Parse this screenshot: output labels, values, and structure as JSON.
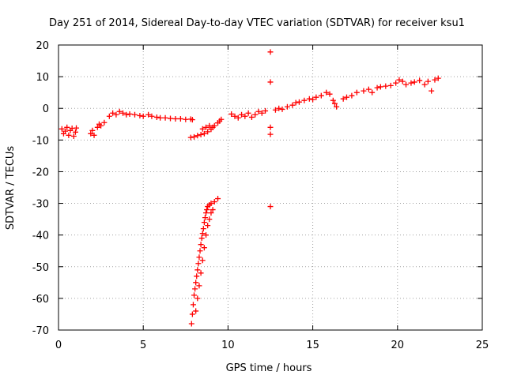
{
  "chart_data": {
    "type": "scatter",
    "title": "Day 251 of 2014, Sidereal Day-to-day VTEC variation (SDTVAR) for receiver ksu1",
    "xlabel": "GPS time / hours",
    "ylabel": "SDTVAR / TECUs",
    "xlim": [
      0,
      25
    ],
    "ylim": [
      -70,
      20
    ],
    "xticks": [
      0,
      5,
      10,
      15,
      20,
      25
    ],
    "yticks": [
      -70,
      -60,
      -50,
      -40,
      -30,
      -20,
      -10,
      0,
      10,
      20
    ],
    "grid": true,
    "marker": "+",
    "color": "#ff0000",
    "series": [
      {
        "name": "SDTVAR",
        "points": [
          [
            0.2,
            -6.5
          ],
          [
            0.3,
            -8.0
          ],
          [
            0.4,
            -7.2
          ],
          [
            0.5,
            -6.0
          ],
          [
            0.6,
            -8.5
          ],
          [
            0.7,
            -7.0
          ],
          [
            0.8,
            -6.3
          ],
          [
            0.9,
            -8.8
          ],
          [
            1.0,
            -7.5
          ],
          [
            1.05,
            -6.2
          ],
          [
            1.9,
            -8.0
          ],
          [
            2.0,
            -7.0
          ],
          [
            2.1,
            -8.5
          ],
          [
            2.3,
            -6.0
          ],
          [
            2.4,
            -5.0
          ],
          [
            2.5,
            -5.5
          ],
          [
            2.7,
            -4.5
          ],
          [
            3.0,
            -2.5
          ],
          [
            3.2,
            -1.5
          ],
          [
            3.4,
            -2.0
          ],
          [
            3.6,
            -1.0
          ],
          [
            3.8,
            -1.5
          ],
          [
            4.0,
            -2.0
          ],
          [
            4.2,
            -1.8
          ],
          [
            4.5,
            -2.0
          ],
          [
            4.8,
            -2.3
          ],
          [
            5.0,
            -2.5
          ],
          [
            5.3,
            -2.0
          ],
          [
            5.5,
            -2.5
          ],
          [
            5.8,
            -2.8
          ],
          [
            6.0,
            -3.0
          ],
          [
            6.3,
            -3.0
          ],
          [
            6.6,
            -3.2
          ],
          [
            6.9,
            -3.3
          ],
          [
            7.2,
            -3.3
          ],
          [
            7.5,
            -3.5
          ],
          [
            7.8,
            -3.4
          ],
          [
            7.9,
            -3.6
          ],
          [
            7.8,
            -9.2
          ],
          [
            8.0,
            -9.0
          ],
          [
            8.2,
            -8.6
          ],
          [
            8.4,
            -8.3
          ],
          [
            8.6,
            -8.0
          ],
          [
            8.8,
            -7.4
          ],
          [
            9.0,
            -6.6
          ],
          [
            9.1,
            -6.0
          ],
          [
            9.2,
            -5.5
          ],
          [
            9.4,
            -4.6
          ],
          [
            9.5,
            -4.0
          ],
          [
            9.6,
            -3.5
          ],
          [
            8.5,
            -6.5
          ],
          [
            8.7,
            -6.0
          ],
          [
            8.9,
            -5.5
          ],
          [
            7.85,
            -68
          ],
          [
            7.9,
            -65
          ],
          [
            7.95,
            -62
          ],
          [
            8.0,
            -59
          ],
          [
            8.05,
            -57
          ],
          [
            8.1,
            -55
          ],
          [
            8.15,
            -53
          ],
          [
            8.2,
            -51
          ],
          [
            8.25,
            -49
          ],
          [
            8.3,
            -47
          ],
          [
            8.35,
            -45
          ],
          [
            8.4,
            -43
          ],
          [
            8.45,
            -41
          ],
          [
            8.5,
            -39.5
          ],
          [
            8.55,
            -38
          ],
          [
            8.6,
            -36
          ],
          [
            8.65,
            -34.5
          ],
          [
            8.7,
            -33
          ],
          [
            8.75,
            -32
          ],
          [
            8.8,
            -31
          ],
          [
            8.9,
            -30.5
          ],
          [
            9.0,
            -30
          ],
          [
            9.2,
            -29.5
          ],
          [
            9.4,
            -28.5
          ],
          [
            8.1,
            -64
          ],
          [
            8.2,
            -60
          ],
          [
            8.3,
            -56
          ],
          [
            8.4,
            -52
          ],
          [
            8.5,
            -48
          ],
          [
            8.6,
            -44
          ],
          [
            8.7,
            -40
          ],
          [
            8.8,
            -37
          ],
          [
            8.9,
            -35
          ],
          [
            9.0,
            -33
          ],
          [
            9.1,
            -32
          ],
          [
            10.2,
            -1.8
          ],
          [
            10.4,
            -2.5
          ],
          [
            10.6,
            -3.0
          ],
          [
            10.8,
            -2.0
          ],
          [
            11.0,
            -2.5
          ],
          [
            11.2,
            -1.5
          ],
          [
            11.4,
            -2.8
          ],
          [
            11.6,
            -2.0
          ],
          [
            11.8,
            -1.0
          ],
          [
            12.0,
            -1.5
          ],
          [
            12.2,
            -0.8
          ],
          [
            12.5,
            17.8
          ],
          [
            12.5,
            8.3
          ],
          [
            12.5,
            -6.0
          ],
          [
            12.5,
            -8.2
          ],
          [
            12.5,
            -31.0
          ],
          [
            12.8,
            -0.5
          ],
          [
            13.0,
            0.0
          ],
          [
            13.2,
            -0.3
          ],
          [
            13.5,
            0.5
          ],
          [
            13.8,
            1.0
          ],
          [
            14.0,
            1.8
          ],
          [
            14.2,
            2.0
          ],
          [
            14.5,
            2.5
          ],
          [
            14.8,
            3.0
          ],
          [
            15.0,
            2.8
          ],
          [
            15.2,
            3.5
          ],
          [
            15.5,
            4.0
          ],
          [
            15.8,
            5.0
          ],
          [
            16.0,
            4.5
          ],
          [
            16.2,
            2.5
          ],
          [
            16.3,
            1.5
          ],
          [
            16.4,
            0.5
          ],
          [
            16.8,
            3.0
          ],
          [
            17.0,
            3.5
          ],
          [
            17.3,
            4.0
          ],
          [
            17.6,
            5.0
          ],
          [
            18.0,
            5.5
          ],
          [
            18.3,
            6.0
          ],
          [
            18.5,
            5.0
          ],
          [
            18.8,
            6.5
          ],
          [
            19.0,
            6.8
          ],
          [
            19.3,
            7.0
          ],
          [
            19.6,
            7.2
          ],
          [
            19.9,
            8.0
          ],
          [
            20.1,
            9.0
          ],
          [
            20.3,
            8.5
          ],
          [
            20.5,
            7.5
          ],
          [
            20.8,
            8.0
          ],
          [
            21.0,
            8.3
          ],
          [
            21.3,
            8.8
          ],
          [
            21.6,
            7.5
          ],
          [
            21.8,
            8.5
          ],
          [
            22.0,
            5.5
          ],
          [
            22.2,
            9.0
          ],
          [
            22.4,
            9.5
          ]
        ]
      }
    ]
  }
}
